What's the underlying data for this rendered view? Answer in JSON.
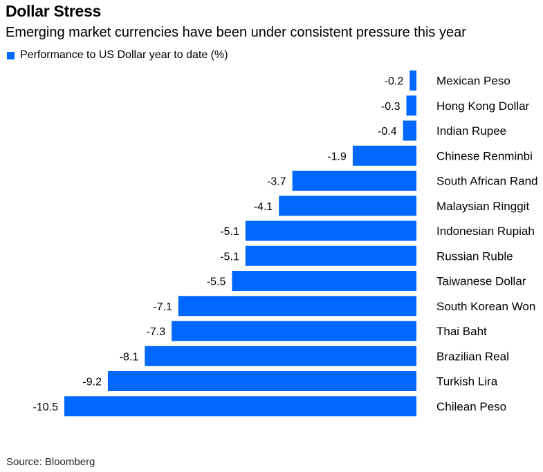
{
  "title": "Dollar Stress",
  "subtitle": "Emerging market currencies have been under consistent pressure this year",
  "source": "Source: Bloomberg",
  "colors": {
    "bar": "#0068ff",
    "text": "#000000"
  },
  "chart_data": {
    "type": "bar",
    "orientation": "horizontal",
    "legend": "Performance to US Dollar year to date (%)",
    "legend_position": "top-left",
    "grid": false,
    "categories": [
      "Mexican Peso",
      "Hong Kong Dollar",
      "Indian Rupee",
      "Chinese Renminbi",
      "South African Rand",
      "Malaysian Ringgit",
      "Indonesian Rupiah",
      "Russian Ruble",
      "Taiwanese Dollar",
      "South Korean Won",
      "Thai Baht",
      "Brazilian Real",
      "Turkish Lira",
      "Chilean Peso"
    ],
    "values": [
      -0.2,
      -0.3,
      -0.4,
      -1.9,
      -3.7,
      -4.1,
      -5.1,
      -5.1,
      -5.5,
      -7.1,
      -7.3,
      -8.1,
      -9.2,
      -10.5
    ],
    "value_labels": [
      "-0.2",
      "-0.3",
      "-0.4",
      "-1.9",
      "-3.7",
      "-4.1",
      "-5.1",
      "-5.1",
      "-5.5",
      "-7.1",
      "-7.3",
      "-8.1",
      "-9.2",
      "-10.5"
    ],
    "xlim": [
      -10.5,
      0
    ]
  }
}
